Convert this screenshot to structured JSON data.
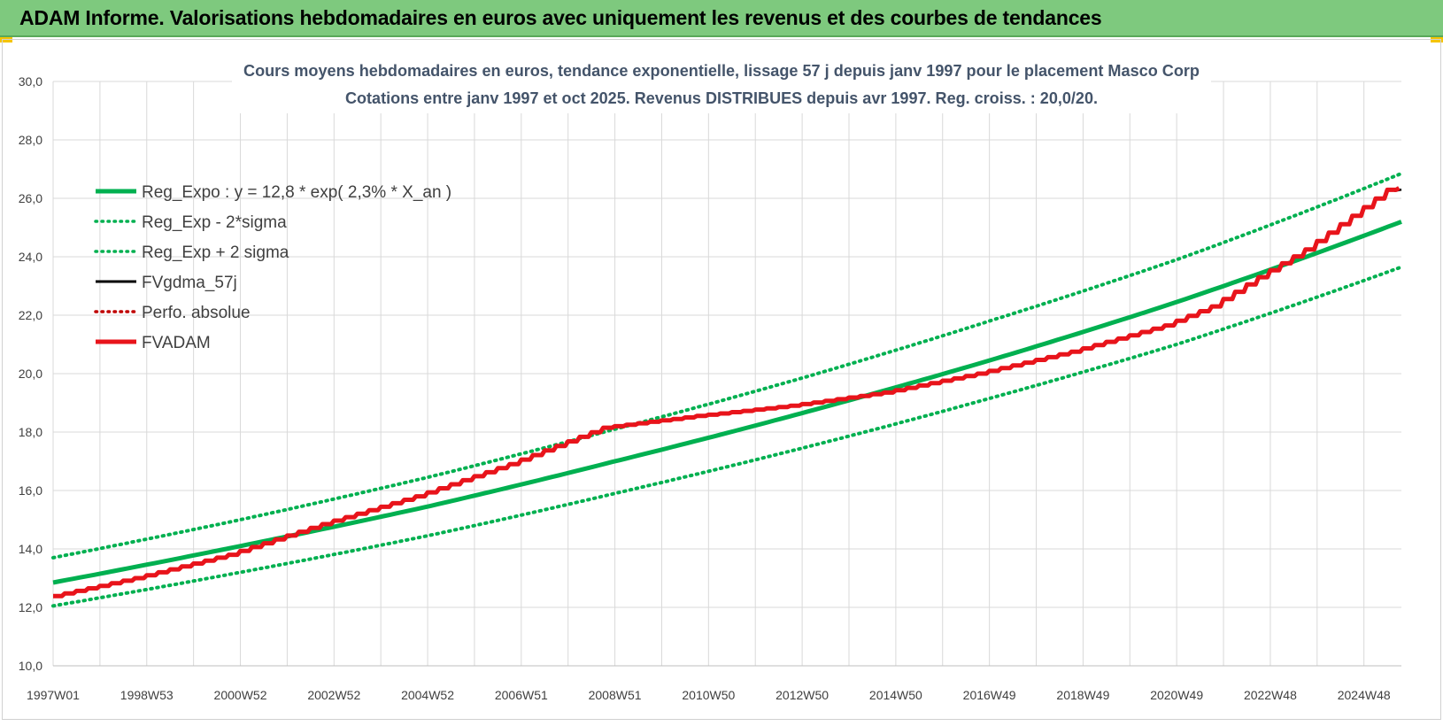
{
  "header": {
    "title": "ADAM Informe. Valorisations hebdomadaires en euros avec uniquement les revenus et des courbes de tendances"
  },
  "colors": {
    "header_bg": "#7ec97e",
    "trend_green": "#00b050",
    "fvadam_red": "#e8141b",
    "fvgdma_black": "#000000",
    "perfo_red": "#c00000",
    "grid": "#d9d9d9",
    "title_text": "#44546a"
  },
  "chart_data": {
    "type": "line",
    "title": "Cours moyens hebdomadaires en euros, tendance exponentielle, lissage 57 j depuis janv 1997 pour le placement Masco Corp",
    "subtitle": "Cotations entre janv 1997 et oct 2025. Revenus DISTRIBUES depuis avr 1997. Reg. croiss. : 20,0/20.",
    "xlabel": "",
    "ylabel": "",
    "ylim": [
      10,
      30
    ],
    "yticks": [
      "10,0",
      "12,0",
      "14,0",
      "16,0",
      "18,0",
      "20,0",
      "22,0",
      "24,0",
      "26,0",
      "28,0",
      "30,0"
    ],
    "xlim": [
      1997.0,
      2025.8
    ],
    "xticks": [
      {
        "label": "1997W01",
        "x": 1997.0
      },
      {
        "label": "1998W53",
        "x": 1999.0
      },
      {
        "label": "2000W52",
        "x": 2001.0
      },
      {
        "label": "2002W52",
        "x": 2003.0
      },
      {
        "label": "2004W52",
        "x": 2005.0
      },
      {
        "label": "2006W51",
        "x": 2007.0
      },
      {
        "label": "2008W51",
        "x": 2009.0
      },
      {
        "label": "2010W50",
        "x": 2011.0
      },
      {
        "label": "2012W50",
        "x": 2013.0
      },
      {
        "label": "2014W50",
        "x": 2015.0
      },
      {
        "label": "2016W49",
        "x": 2017.0
      },
      {
        "label": "2018W49",
        "x": 2019.0
      },
      {
        "label": "2020W49",
        "x": 2021.0
      },
      {
        "label": "2022W48",
        "x": 2023.0
      },
      {
        "label": "2024W48",
        "x": 2025.0
      }
    ],
    "grid": true,
    "legend_position": "top-left",
    "series": [
      {
        "name": "Reg_Expo : y = 12,8 * exp( 2,3% *  X_an )",
        "style": "solid",
        "color": "#00b050",
        "x": [
          1997.0,
          2001.0,
          2005.0,
          2009.0,
          2013.0,
          2017.0,
          2021.0,
          2025.8
        ],
        "y": [
          12.85,
          14.1,
          15.45,
          17.0,
          18.65,
          20.45,
          22.45,
          25.2
        ]
      },
      {
        "name": "Reg_Exp - 2*sigma",
        "style": "dotted",
        "color": "#00b050",
        "x": [
          1997.0,
          2001.0,
          2005.0,
          2009.0,
          2013.0,
          2017.0,
          2021.0,
          2025.8
        ],
        "y": [
          12.05,
          13.2,
          14.45,
          15.9,
          17.45,
          19.15,
          21.0,
          23.65
        ]
      },
      {
        "name": "Reg_Exp + 2 sigma",
        "style": "dotted",
        "color": "#00b050",
        "x": [
          1997.0,
          2001.0,
          2005.0,
          2009.0,
          2013.0,
          2017.0,
          2021.0,
          2025.8
        ],
        "y": [
          13.7,
          15.0,
          16.45,
          18.1,
          19.85,
          21.8,
          23.9,
          26.85
        ]
      },
      {
        "name": "FVgdma_57j",
        "style": "solid-thin",
        "color": "#000000",
        "x": [
          2025.65,
          2025.8
        ],
        "y": [
          26.25,
          26.3
        ]
      },
      {
        "name": "Perfo. absolue",
        "style": "dotted",
        "color": "#c00000",
        "x": [],
        "y": []
      },
      {
        "name": "FVADAM",
        "style": "solid-stepped",
        "color": "#e8141b",
        "x": [
          1997.0,
          1999.0,
          2001.0,
          2003.0,
          2005.0,
          2007.0,
          2009.0,
          2011.0,
          2013.0,
          2015.0,
          2017.0,
          2019.0,
          2021.0,
          2022.0,
          2023.0,
          2024.0,
          2025.0,
          2025.8
        ],
        "y": [
          12.3,
          13.0,
          13.8,
          14.85,
          15.8,
          16.9,
          18.15,
          18.55,
          18.9,
          19.35,
          20.0,
          20.75,
          21.65,
          22.3,
          23.3,
          24.25,
          25.4,
          26.35
        ]
      }
    ]
  }
}
